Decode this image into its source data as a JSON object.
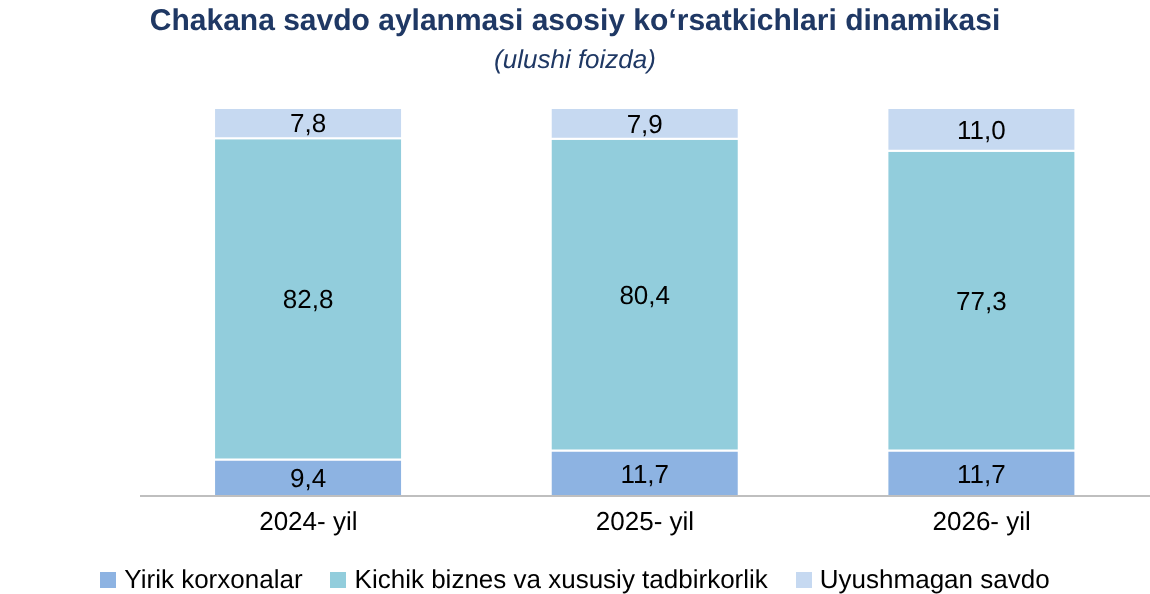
{
  "chart_data": {
    "type": "bar",
    "title": "Chakana savdo aylanmasi asosiy koʻrsatkichlari dinamikasi",
    "subtitle": "(ulushi foizda)",
    "categories": [
      "2024- yil",
      "2025- yil",
      "2026- yil"
    ],
    "stacked": true,
    "grid": false,
    "legend": "bottom",
    "series": [
      {
        "name": "Yirik korxonalar",
        "color": "#8db3e2",
        "values": [
          9.4,
          11.7,
          11.7
        ],
        "value_labels": [
          "9,4",
          "11,7",
          "11,7"
        ]
      },
      {
        "name": "Kichik biznes va xususiy tadbirkorlik",
        "color": "#92cddc",
        "values": [
          82.8,
          80.4,
          77.3
        ],
        "value_labels": [
          "82,8",
          "80,4",
          "77,3"
        ]
      },
      {
        "name": "Uyushmagan savdo",
        "color": "#c6d9f1",
        "values": [
          7.8,
          7.9,
          11.0
        ],
        "value_labels": [
          "7,8",
          "7,9",
          "11,0"
        ]
      }
    ]
  }
}
